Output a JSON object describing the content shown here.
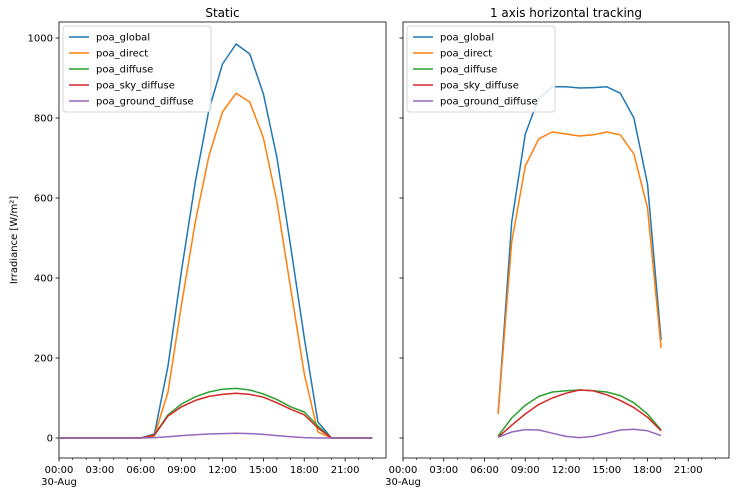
{
  "chart_data": [
    {
      "type": "line",
      "title": "Static",
      "ylabel": "Irradiance [W/m²]",
      "xlabel": "",
      "x": [
        "00:00",
        "01:00",
        "02:00",
        "03:00",
        "04:00",
        "05:00",
        "06:00",
        "07:00",
        "08:00",
        "09:00",
        "10:00",
        "11:00",
        "12:00",
        "13:00",
        "14:00",
        "15:00",
        "16:00",
        "17:00",
        "18:00",
        "19:00",
        "20:00",
        "21:00",
        "22:00",
        "23:00"
      ],
      "xticks": [
        "00:00",
        "03:00",
        "06:00",
        "09:00",
        "12:00",
        "15:00",
        "18:00",
        "21:00"
      ],
      "xtick_sub": "30-Aug",
      "xlim": [
        "00:00",
        "24:00"
      ],
      "ylim": [
        -50,
        1040
      ],
      "yticks": [
        0,
        200,
        400,
        600,
        800,
        1000
      ],
      "legend": "top-left",
      "series": [
        {
          "name": "poa_global",
          "color": "#1f77b4",
          "values": [
            0,
            0,
            0,
            0,
            0,
            0,
            0,
            10,
            180,
            420,
            640,
            820,
            935,
            985,
            960,
            860,
            700,
            480,
            250,
            40,
            0,
            0,
            0,
            0
          ]
        },
        {
          "name": "poa_direct",
          "color": "#ff7f0e",
          "values": [
            0,
            0,
            0,
            0,
            0,
            0,
            0,
            5,
            115,
            335,
            540,
            705,
            815,
            862,
            840,
            750,
            590,
            375,
            160,
            15,
            0,
            0,
            0,
            0
          ]
        },
        {
          "name": "poa_diffuse",
          "color": "#2ca02c",
          "values": [
            0,
            0,
            0,
            0,
            0,
            0,
            0,
            8,
            58,
            85,
            103,
            115,
            122,
            124,
            120,
            110,
            96,
            78,
            65,
            30,
            0,
            0,
            0,
            0
          ]
        },
        {
          "name": "poa_sky_diffuse",
          "color": "#d62728",
          "values": [
            0,
            0,
            0,
            0,
            0,
            0,
            0,
            7,
            55,
            78,
            94,
            104,
            109,
            112,
            109,
            102,
            88,
            72,
            58,
            25,
            0,
            0,
            0,
            0
          ]
        },
        {
          "name": "poa_ground_diffuse",
          "color": "#9467bd",
          "values": [
            0,
            0,
            0,
            0,
            0,
            0,
            0,
            1,
            3,
            6,
            8,
            10,
            11,
            12,
            11,
            9,
            6,
            3,
            1,
            0,
            0,
            0,
            0,
            0
          ]
        }
      ]
    },
    {
      "type": "line",
      "title": "1 axis horizontal tracking",
      "ylabel": "",
      "xlabel": "",
      "x": [
        "07:00",
        "08:00",
        "09:00",
        "10:00",
        "11:00",
        "12:00",
        "13:00",
        "14:00",
        "15:00",
        "16:00",
        "17:00",
        "18:00",
        "19:00"
      ],
      "xticks": [
        "00:00",
        "03:00",
        "06:00",
        "09:00",
        "12:00",
        "15:00",
        "18:00",
        "21:00"
      ],
      "xtick_sub": "30-Aug",
      "xlim": [
        "00:00",
        "24:00"
      ],
      "ylim": [
        -50,
        1040
      ],
      "yticks": [
        0,
        200,
        400,
        600,
        800,
        1000
      ],
      "legend": "top-left",
      "series": [
        {
          "name": "poa_global",
          "color": "#1f77b4",
          "values": [
            60,
            540,
            760,
            850,
            878,
            878,
            875,
            876,
            878,
            862,
            800,
            635,
            245
          ]
        },
        {
          "name": "poa_direct",
          "color": "#ff7f0e",
          "values": [
            60,
            490,
            680,
            748,
            765,
            760,
            755,
            758,
            765,
            758,
            710,
            575,
            225
          ]
        },
        {
          "name": "poa_diffuse",
          "color": "#2ca02c",
          "values": [
            5,
            50,
            82,
            104,
            115,
            118,
            120,
            118,
            115,
            106,
            88,
            60,
            20
          ]
        },
        {
          "name": "poa_sky_diffuse",
          "color": "#d62728",
          "values": [
            2,
            32,
            60,
            84,
            100,
            112,
            120,
            118,
            108,
            94,
            76,
            52,
            18
          ]
        },
        {
          "name": "poa_ground_diffuse",
          "color": "#9467bd",
          "values": [
            2,
            15,
            21,
            20,
            12,
            4,
            1,
            4,
            12,
            20,
            22,
            18,
            6
          ]
        }
      ]
    }
  ]
}
